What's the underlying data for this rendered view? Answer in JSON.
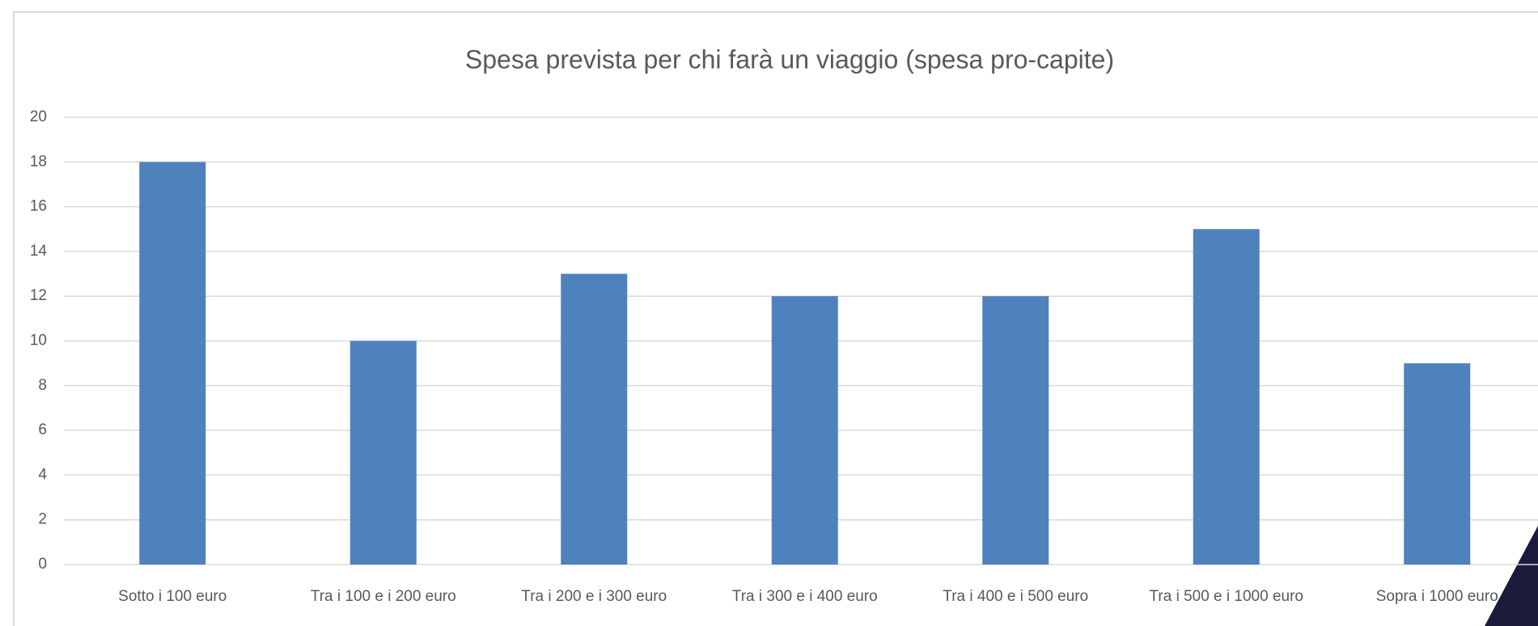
{
  "chart_data": {
    "type": "bar",
    "title": "Spesa prevista per chi farà un viaggio (spesa pro-capite)",
    "categories": [
      "Sotto i 100 euro",
      "Tra i 100 e i 200 euro",
      "Tra i 200 e i 300 euro",
      "Tra i 300 e i 400 euro",
      "Tra i 400 e i 500 euro",
      "Tra i 500 e i 1000 euro",
      "Sopra i 1000 euro"
    ],
    "values": [
      18,
      10,
      13,
      12,
      12,
      15,
      9
    ],
    "color": "#4f81bd",
    "ylim": [
      0,
      20
    ],
    "yticks": [
      0,
      2,
      4,
      6,
      8,
      10,
      12,
      14,
      16,
      18,
      20
    ],
    "grid": true
  }
}
